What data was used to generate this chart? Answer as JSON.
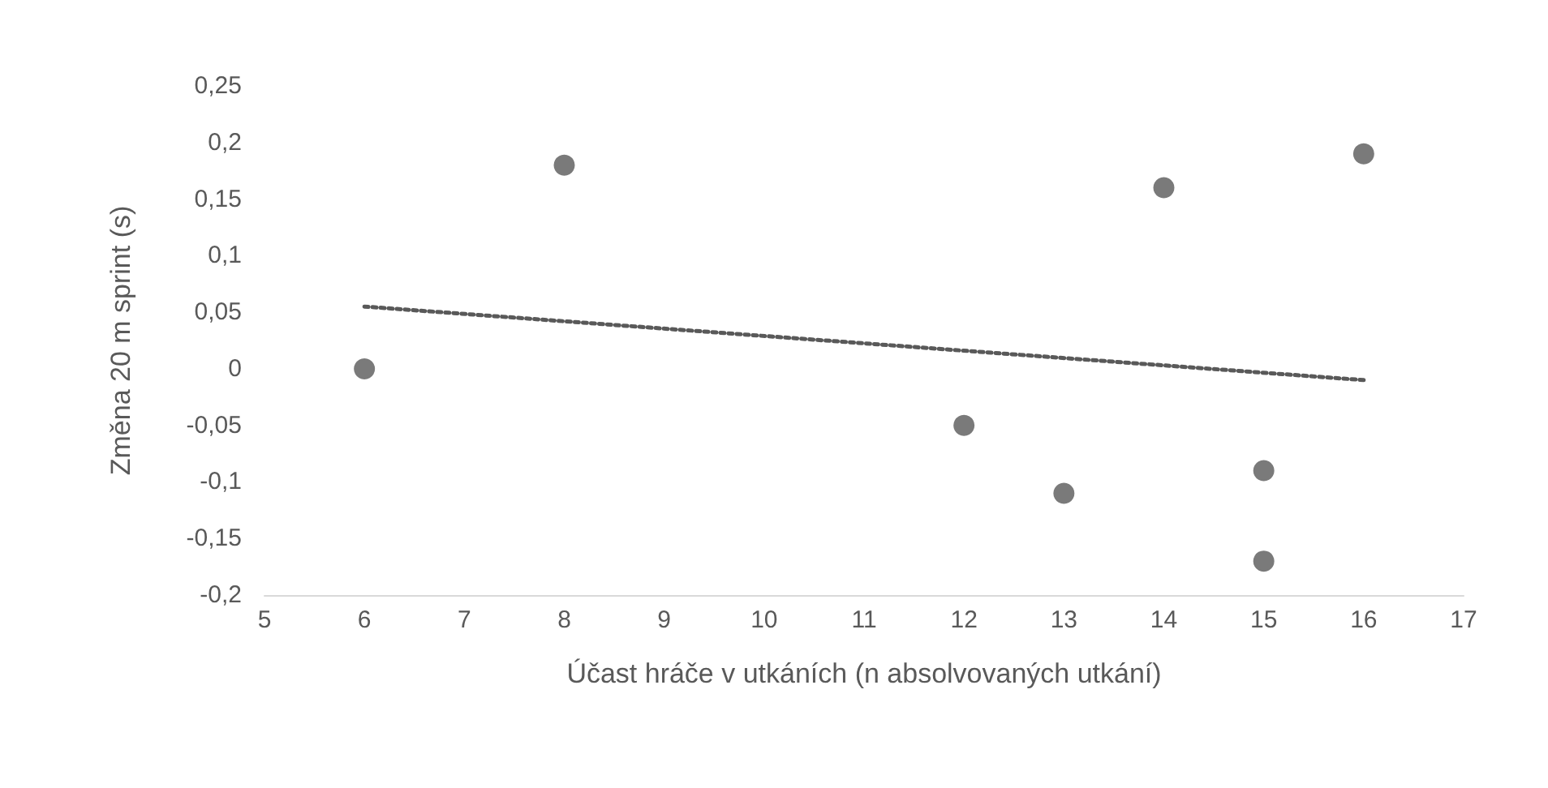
{
  "chart_data": {
    "type": "scatter",
    "xlabel": "Účast hráče v utkáních (n absolvovaných utkání)",
    "ylabel": "Změna 20 m sprint (s)",
    "x": [
      6,
      8,
      12,
      13,
      14,
      15,
      15,
      16
    ],
    "series": [
      {
        "color": "#595959",
        "values": [
          0,
          0.18,
          -0.05,
          -0.11,
          0.16,
          -0.09,
          -0.17,
          0.19
        ],
        "marker": "circle"
      },
      {
        "type": "line",
        "color": "#595959",
        "x": [
          6,
          16
        ],
        "values": [
          0.055,
          -0.01
        ],
        "line_style": "dotted",
        "marker": "none"
      }
    ],
    "xlim": [
      5,
      17
    ],
    "xticks": [
      5,
      6,
      7,
      8,
      9,
      10,
      11,
      12,
      13,
      14,
      15,
      16,
      17
    ],
    "ylim": [
      -0.2,
      0.25
    ],
    "yticks": [
      {
        "value": -0.2,
        "label": "-0,2"
      },
      {
        "value": -0.15,
        "label": "-0,15"
      },
      {
        "value": -0.1,
        "label": "-0,1"
      },
      {
        "value": -0.05,
        "label": "-0,05"
      },
      {
        "value": 0,
        "label": "0"
      },
      {
        "value": 0.05,
        "label": "0,05"
      },
      {
        "value": 0.1,
        "label": "0,1"
      },
      {
        "value": 0.15,
        "label": "0,15"
      },
      {
        "value": 0.2,
        "label": "0,2"
      },
      {
        "value": 0.25,
        "label": "0,25"
      }
    ],
    "grid": false
  }
}
